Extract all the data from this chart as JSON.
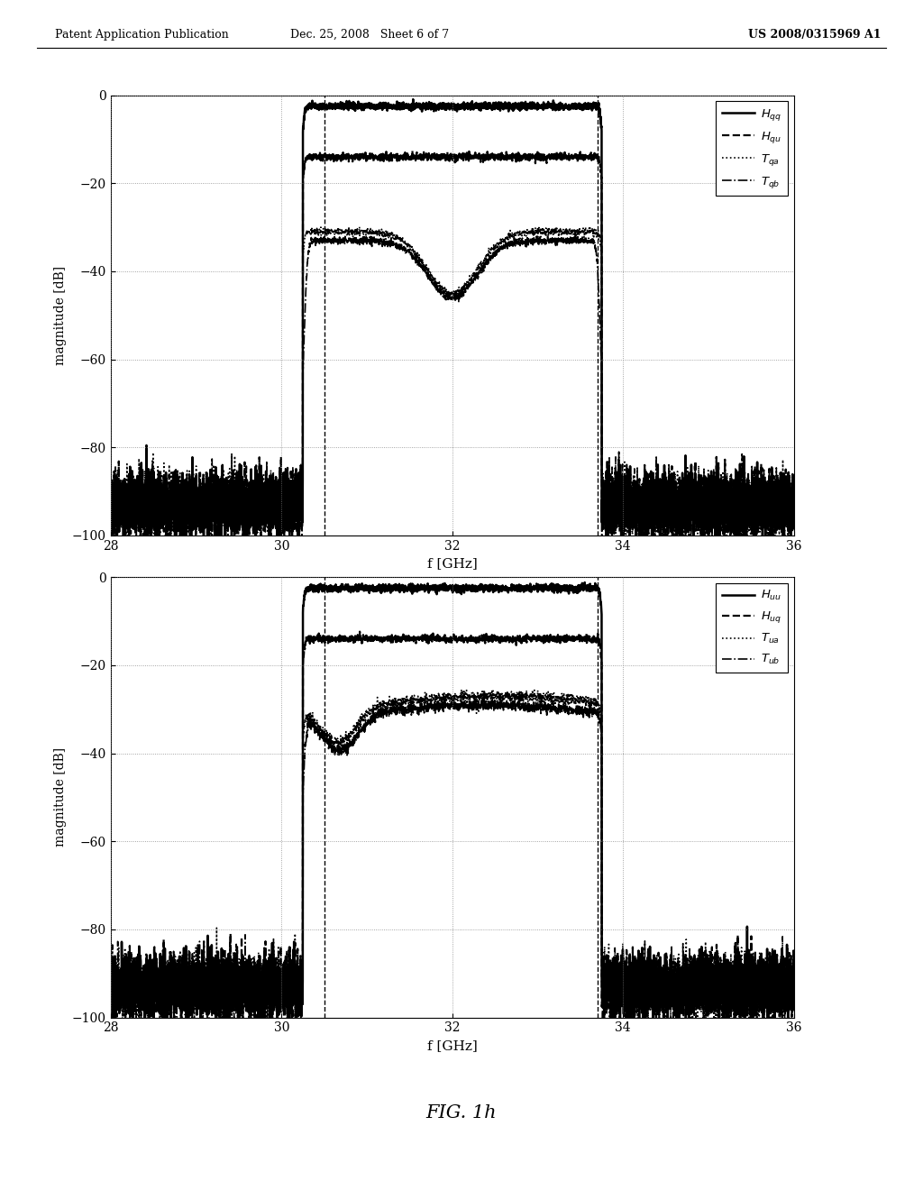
{
  "header_left": "Patent Application Publication",
  "header_center": "Dec. 25, 2008   Sheet 6 of 7",
  "header_right": "US 2008/0315969 A1",
  "fig_label": "FIG. 1h",
  "xlabel": "f [GHz]",
  "ylabel": "magnitude [dB]",
  "xlim": [
    28,
    36
  ],
  "ylim": [
    -100,
    0
  ],
  "yticks": [
    0,
    -20,
    -40,
    -60,
    -80,
    -100
  ],
  "xticks": [
    28,
    30,
    32,
    34,
    36
  ],
  "vline1": 30.5,
  "vline2": 33.7,
  "plot1_leg": [
    "$H_{qq}$",
    "$H_{qu}$",
    "$T_{qa}$",
    "$T_{qb}$"
  ],
  "plot2_leg": [
    "$H_{uu}$",
    "$H_{uq}$",
    "$T_{ua}$",
    "$T_{ub}$"
  ],
  "f_low": 30.25,
  "f_high": 33.75,
  "Hqq_peak_db": -2.5,
  "Hqu_peak_db": -14.0,
  "Tqa_peak_db": -31.0,
  "Tqb_peak_db": -33.0,
  "Huu_peak_db": -2.5,
  "Huq_peak_db": -14.0,
  "Tua_peak_db": -29.0,
  "Tub_peak_db": -31.0
}
